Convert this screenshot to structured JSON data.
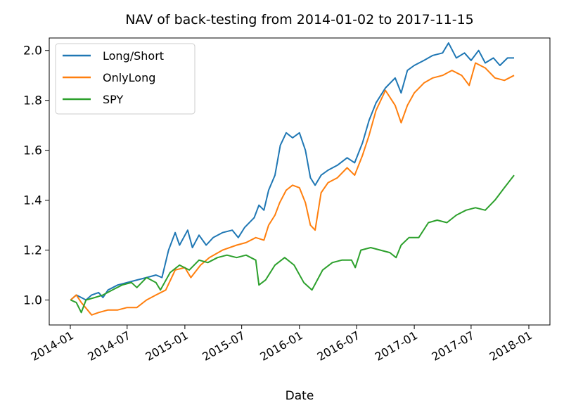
{
  "chart_data": {
    "type": "line",
    "title": "NAV of back-testing from 2014-01-02 to 2017-11-15",
    "xlabel": "Date",
    "ylabel": "",
    "xlim": [
      "2014-01-01",
      "2018-01-01"
    ],
    "ylim": [
      0.9,
      2.05
    ],
    "grid": false,
    "legend_position": "top-left",
    "x_ticks": [
      {
        "date": "2014-01-01",
        "label": "2014-01"
      },
      {
        "date": "2014-07-01",
        "label": "2014-07"
      },
      {
        "date": "2015-01-01",
        "label": "2015-01"
      },
      {
        "date": "2015-07-01",
        "label": "2015-07"
      },
      {
        "date": "2016-01-01",
        "label": "2016-01"
      },
      {
        "date": "2016-07-01",
        "label": "2016-07"
      },
      {
        "date": "2017-01-01",
        "label": "2017-01"
      },
      {
        "date": "2017-07-01",
        "label": "2017-07"
      },
      {
        "date": "2018-01-01",
        "label": "2018-01"
      }
    ],
    "y_ticks": [
      {
        "value": 1.0,
        "label": "1.0"
      },
      {
        "value": 1.2,
        "label": "1.2"
      },
      {
        "value": 1.4,
        "label": "1.4"
      },
      {
        "value": 1.6,
        "label": "1.6"
      },
      {
        "value": 1.8,
        "label": "1.8"
      },
      {
        "value": 2.0,
        "label": "2.0"
      }
    ],
    "series": [
      {
        "name": "Long/Short",
        "color": "#1f77b4",
        "points": [
          [
            "2014-01-02",
            1.0
          ],
          [
            "2014-01-20",
            1.02
          ],
          [
            "2014-02-05",
            1.01
          ],
          [
            "2014-02-20",
            1.0
          ],
          [
            "2014-03-10",
            1.02
          ],
          [
            "2014-04-01",
            1.03
          ],
          [
            "2014-04-15",
            1.01
          ],
          [
            "2014-05-01",
            1.04
          ],
          [
            "2014-06-01",
            1.06
          ],
          [
            "2014-07-01",
            1.07
          ],
          [
            "2014-08-01",
            1.08
          ],
          [
            "2014-09-01",
            1.09
          ],
          [
            "2014-10-01",
            1.1
          ],
          [
            "2014-10-20",
            1.09
          ],
          [
            "2014-11-10",
            1.2
          ],
          [
            "2014-12-01",
            1.27
          ],
          [
            "2014-12-15",
            1.22
          ],
          [
            "2015-01-10",
            1.28
          ],
          [
            "2015-01-25",
            1.21
          ],
          [
            "2015-02-15",
            1.26
          ],
          [
            "2015-03-10",
            1.22
          ],
          [
            "2015-04-01",
            1.25
          ],
          [
            "2015-05-01",
            1.27
          ],
          [
            "2015-06-01",
            1.28
          ],
          [
            "2015-06-20",
            1.25
          ],
          [
            "2015-07-10",
            1.29
          ],
          [
            "2015-08-10",
            1.33
          ],
          [
            "2015-08-25",
            1.38
          ],
          [
            "2015-09-10",
            1.36
          ],
          [
            "2015-09-25",
            1.44
          ],
          [
            "2015-10-15",
            1.5
          ],
          [
            "2015-11-01",
            1.62
          ],
          [
            "2015-11-20",
            1.67
          ],
          [
            "2015-12-10",
            1.65
          ],
          [
            "2016-01-01",
            1.67
          ],
          [
            "2016-01-20",
            1.6
          ],
          [
            "2016-02-05",
            1.49
          ],
          [
            "2016-02-20",
            1.46
          ],
          [
            "2016-03-10",
            1.5
          ],
          [
            "2016-04-01",
            1.52
          ],
          [
            "2016-05-01",
            1.54
          ],
          [
            "2016-06-01",
            1.57
          ],
          [
            "2016-06-25",
            1.55
          ],
          [
            "2016-07-20",
            1.63
          ],
          [
            "2016-08-10",
            1.72
          ],
          [
            "2016-09-01",
            1.79
          ],
          [
            "2016-10-01",
            1.85
          ],
          [
            "2016-11-01",
            1.89
          ],
          [
            "2016-11-20",
            1.83
          ],
          [
            "2016-12-10",
            1.92
          ],
          [
            "2017-01-01",
            1.94
          ],
          [
            "2017-02-01",
            1.96
          ],
          [
            "2017-03-01",
            1.98
          ],
          [
            "2017-04-01",
            1.99
          ],
          [
            "2017-04-20",
            2.03
          ],
          [
            "2017-05-15",
            1.97
          ],
          [
            "2017-06-10",
            1.99
          ],
          [
            "2017-07-01",
            1.96
          ],
          [
            "2017-07-25",
            2.0
          ],
          [
            "2017-08-15",
            1.95
          ],
          [
            "2017-09-10",
            1.97
          ],
          [
            "2017-10-01",
            1.94
          ],
          [
            "2017-10-25",
            1.97
          ],
          [
            "2017-11-15",
            1.97
          ]
        ]
      },
      {
        "name": "OnlyLong",
        "color": "#ff7f0e",
        "points": [
          [
            "2014-01-02",
            1.0
          ],
          [
            "2014-01-20",
            1.02
          ],
          [
            "2014-02-05",
            0.99
          ],
          [
            "2014-02-25",
            0.96
          ],
          [
            "2014-03-10",
            0.94
          ],
          [
            "2014-04-01",
            0.95
          ],
          [
            "2014-05-01",
            0.96
          ],
          [
            "2014-06-01",
            0.96
          ],
          [
            "2014-07-01",
            0.97
          ],
          [
            "2014-08-01",
            0.97
          ],
          [
            "2014-09-01",
            1.0
          ],
          [
            "2014-10-01",
            1.02
          ],
          [
            "2014-11-01",
            1.04
          ],
          [
            "2014-12-01",
            1.12
          ],
          [
            "2015-01-01",
            1.13
          ],
          [
            "2015-01-20",
            1.09
          ],
          [
            "2015-02-20",
            1.14
          ],
          [
            "2015-03-20",
            1.17
          ],
          [
            "2015-05-01",
            1.2
          ],
          [
            "2015-06-15",
            1.22
          ],
          [
            "2015-07-15",
            1.23
          ],
          [
            "2015-08-15",
            1.25
          ],
          [
            "2015-09-10",
            1.24
          ],
          [
            "2015-09-25",
            1.3
          ],
          [
            "2015-10-15",
            1.34
          ],
          [
            "2015-10-30",
            1.39
          ],
          [
            "2015-11-20",
            1.44
          ],
          [
            "2015-12-10",
            1.46
          ],
          [
            "2016-01-01",
            1.45
          ],
          [
            "2016-01-20",
            1.39
          ],
          [
            "2016-02-05",
            1.3
          ],
          [
            "2016-02-20",
            1.28
          ],
          [
            "2016-03-10",
            1.43
          ],
          [
            "2016-04-01",
            1.47
          ],
          [
            "2016-05-01",
            1.49
          ],
          [
            "2016-06-01",
            1.53
          ],
          [
            "2016-06-25",
            1.5
          ],
          [
            "2016-07-20",
            1.58
          ],
          [
            "2016-08-10",
            1.66
          ],
          [
            "2016-09-01",
            1.76
          ],
          [
            "2016-10-01",
            1.84
          ],
          [
            "2016-11-01",
            1.78
          ],
          [
            "2016-11-20",
            1.71
          ],
          [
            "2016-12-10",
            1.78
          ],
          [
            "2017-01-01",
            1.83
          ],
          [
            "2017-02-01",
            1.87
          ],
          [
            "2017-03-01",
            1.89
          ],
          [
            "2017-04-01",
            1.9
          ],
          [
            "2017-05-01",
            1.92
          ],
          [
            "2017-06-01",
            1.9
          ],
          [
            "2017-06-25",
            1.86
          ],
          [
            "2017-07-15",
            1.95
          ],
          [
            "2017-08-15",
            1.93
          ],
          [
            "2017-09-15",
            1.89
          ],
          [
            "2017-10-15",
            1.88
          ],
          [
            "2017-11-15",
            1.9
          ]
        ]
      },
      {
        "name": "SPY",
        "color": "#2ca02c",
        "points": [
          [
            "2014-01-02",
            1.0
          ],
          [
            "2014-01-20",
            0.99
          ],
          [
            "2014-02-05",
            0.95
          ],
          [
            "2014-02-20",
            1.0
          ],
          [
            "2014-03-20",
            1.01
          ],
          [
            "2014-04-15",
            1.02
          ],
          [
            "2014-05-15",
            1.04
          ],
          [
            "2014-06-15",
            1.06
          ],
          [
            "2014-07-15",
            1.07
          ],
          [
            "2014-08-01",
            1.05
          ],
          [
            "2014-09-01",
            1.09
          ],
          [
            "2014-10-01",
            1.07
          ],
          [
            "2014-10-15",
            1.04
          ],
          [
            "2014-11-15",
            1.11
          ],
          [
            "2014-12-15",
            1.14
          ],
          [
            "2015-01-15",
            1.12
          ],
          [
            "2015-02-15",
            1.16
          ],
          [
            "2015-03-15",
            1.15
          ],
          [
            "2015-04-15",
            1.17
          ],
          [
            "2015-05-15",
            1.18
          ],
          [
            "2015-06-15",
            1.17
          ],
          [
            "2015-07-15",
            1.18
          ],
          [
            "2015-08-15",
            1.16
          ],
          [
            "2015-08-25",
            1.06
          ],
          [
            "2015-09-15",
            1.08
          ],
          [
            "2015-10-15",
            1.14
          ],
          [
            "2015-11-15",
            1.17
          ],
          [
            "2015-12-15",
            1.14
          ],
          [
            "2016-01-15",
            1.07
          ],
          [
            "2016-02-10",
            1.04
          ],
          [
            "2016-03-15",
            1.12
          ],
          [
            "2016-04-15",
            1.15
          ],
          [
            "2016-05-15",
            1.16
          ],
          [
            "2016-06-15",
            1.16
          ],
          [
            "2016-06-27",
            1.13
          ],
          [
            "2016-07-15",
            1.2
          ],
          [
            "2016-08-15",
            1.21
          ],
          [
            "2016-09-15",
            1.2
          ],
          [
            "2016-10-15",
            1.19
          ],
          [
            "2016-11-04",
            1.17
          ],
          [
            "2016-11-20",
            1.22
          ],
          [
            "2016-12-15",
            1.25
          ],
          [
            "2017-01-15",
            1.25
          ],
          [
            "2017-02-15",
            1.31
          ],
          [
            "2017-03-15",
            1.32
          ],
          [
            "2017-04-15",
            1.31
          ],
          [
            "2017-05-15",
            1.34
          ],
          [
            "2017-06-15",
            1.36
          ],
          [
            "2017-07-15",
            1.37
          ],
          [
            "2017-08-15",
            1.36
          ],
          [
            "2017-09-15",
            1.4
          ],
          [
            "2017-10-15",
            1.45
          ],
          [
            "2017-11-15",
            1.5
          ]
        ]
      }
    ]
  }
}
